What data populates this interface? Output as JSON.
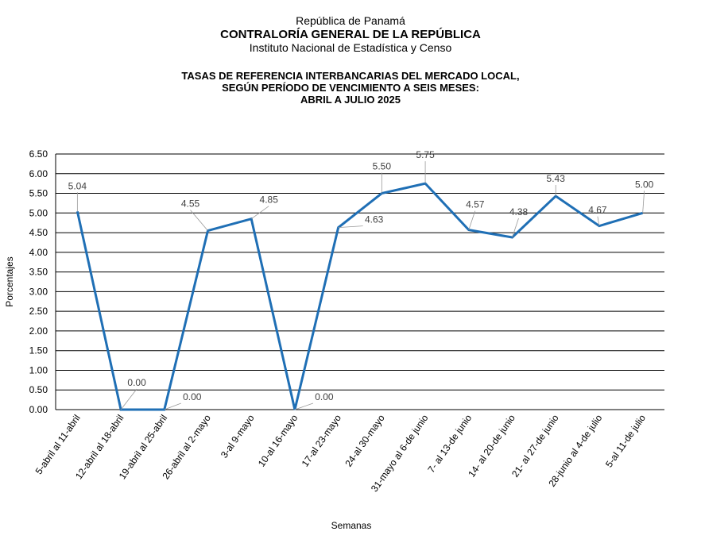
{
  "header": {
    "line1": "República de Panamá",
    "line2": "CONTRALORÍA GENERAL DE LA REPÚBLICA",
    "line3": "Instituto Nacional de Estadística y Censo"
  },
  "chart_data": {
    "type": "line",
    "title": [
      "TASAS DE REFERENCIA INTERBANCARIAS DEL MERCADO LOCAL,",
      "SEGÚN PERÍODO DE VENCIMIENTO A SEIS MESES:",
      "ABRIL A JULIO 2025"
    ],
    "xlabel": "Semanas",
    "ylabel": "Porcentajes",
    "ylim": [
      0,
      6.5
    ],
    "yticks": [
      "0.00",
      "0.50",
      "1.00",
      "1.50",
      "2.00",
      "2.50",
      "3.00",
      "3.50",
      "4.00",
      "4.50",
      "5.00",
      "5.50",
      "6.00",
      "6.50"
    ],
    "grid": true,
    "line_color": "#1F6FB5",
    "categories": [
      "5-abril al 11-abril",
      "12-abril al 18-abril",
      "19-abril al 25-abril",
      "26-abril al 2-mayo",
      "3-al 9-mayo",
      "10-al 16-mayo",
      "17-al 23-mayo",
      "24-al 30-mayo",
      "31-mayo al 6-de junio",
      "7- al 13-de junio",
      "14- al 20-de junio",
      "21- al 27-de junio",
      "28-junio al 4-de julio",
      "5-al 11-de julio"
    ],
    "values": [
      5.04,
      0.0,
      0.0,
      4.55,
      4.85,
      0.0,
      4.63,
      5.5,
      5.75,
      4.57,
      4.38,
      5.43,
      4.67,
      5.0
    ],
    "data_labels": [
      "5.04",
      "0.00",
      "0.00",
      "4.55",
      "4.85",
      "0.00",
      "4.63",
      "5.50",
      "5.75",
      "4.57",
      "4.38",
      "5.43",
      "4.67",
      "5.00"
    ]
  }
}
